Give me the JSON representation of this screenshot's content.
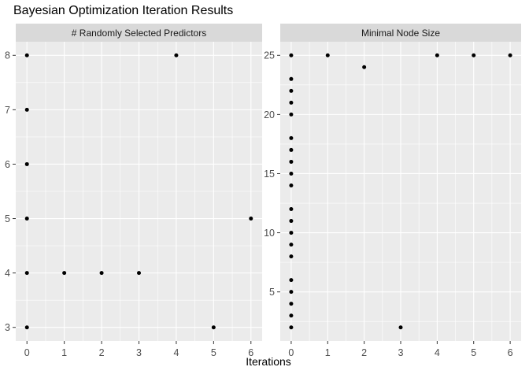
{
  "title": "Bayesian Optimization Iteration Results",
  "xlabel": "Iterations",
  "colors": {
    "background": "#ffffff",
    "panel_bg": "#ebebeb",
    "strip_bg": "#d9d9d9",
    "strip_text": "#1a1a1a",
    "grid": "#ffffff",
    "point": "#000000",
    "axis_text": "#4d4d4d",
    "tick_mark": "#333333",
    "title_text": "#000000"
  },
  "chart_data": {
    "type": "scatter",
    "title": "Bayesian Optimization Iteration Results",
    "xlabel": "Iterations",
    "ylabel": "",
    "grid": true,
    "legend": "none",
    "facets": [
      {
        "label": "# Randomly Selected Predictors",
        "xlim": [
          -0.3,
          6.3
        ],
        "ylim": [
          2.75,
          8.25
        ],
        "x_ticks": [
          0,
          1,
          2,
          3,
          4,
          5,
          6
        ],
        "y_ticks": [
          3,
          4,
          5,
          6,
          7,
          8
        ],
        "points": [
          [
            0,
            3
          ],
          [
            0,
            4
          ],
          [
            0,
            5
          ],
          [
            0,
            6
          ],
          [
            0,
            7
          ],
          [
            0,
            8
          ],
          [
            1,
            4
          ],
          [
            2,
            4
          ],
          [
            3,
            4
          ],
          [
            4,
            8
          ],
          [
            5,
            3
          ],
          [
            6,
            5
          ]
        ]
      },
      {
        "label": "Minimal Node Size",
        "xlim": [
          -0.3,
          6.3
        ],
        "ylim": [
          0.85,
          26.15
        ],
        "x_ticks": [
          0,
          1,
          2,
          3,
          4,
          5,
          6
        ],
        "y_ticks": [
          5,
          10,
          15,
          20,
          25
        ],
        "points": [
          [
            0,
            2
          ],
          [
            0,
            3
          ],
          [
            0,
            4
          ],
          [
            0,
            5
          ],
          [
            0,
            6
          ],
          [
            0,
            8
          ],
          [
            0,
            9
          ],
          [
            0,
            10
          ],
          [
            0,
            11
          ],
          [
            0,
            12
          ],
          [
            0,
            14
          ],
          [
            0,
            15
          ],
          [
            0,
            16
          ],
          [
            0,
            17
          ],
          [
            0,
            18
          ],
          [
            0,
            20
          ],
          [
            0,
            21
          ],
          [
            0,
            22
          ],
          [
            0,
            23
          ],
          [
            0,
            25
          ],
          [
            1,
            25
          ],
          [
            2,
            24
          ],
          [
            3,
            2
          ],
          [
            4,
            25
          ],
          [
            5,
            25
          ],
          [
            6,
            25
          ]
        ]
      }
    ]
  }
}
